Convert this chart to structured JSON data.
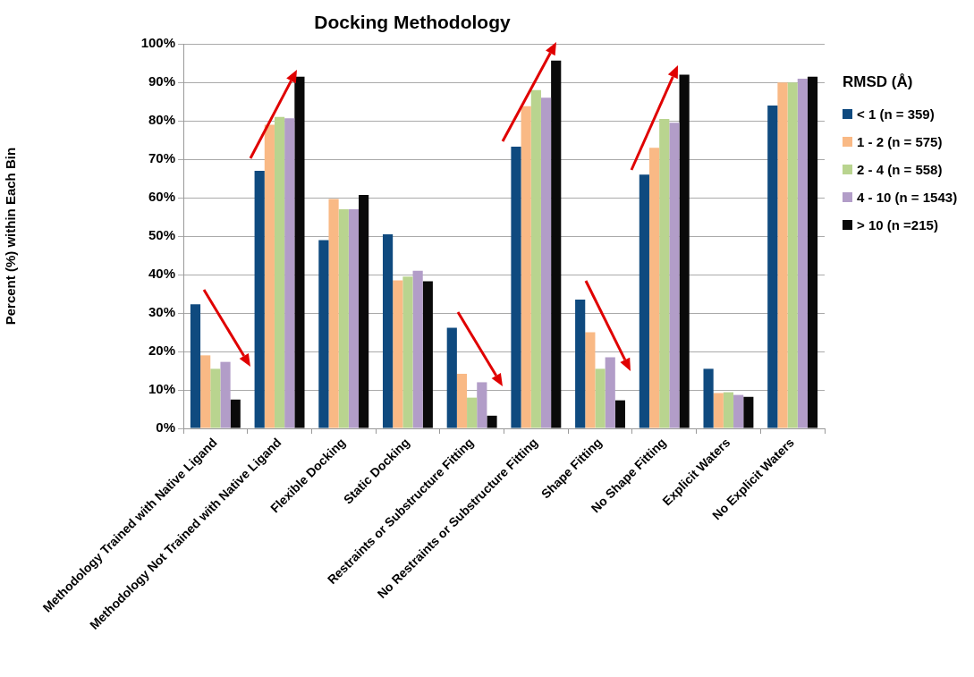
{
  "chart_data": {
    "type": "bar",
    "title": "Docking Methodology",
    "ylabel": "Percent (%) within Each Bin",
    "legend_title": "RMSD (Å)",
    "categories": [
      "Methodology Trained with Native Ligand",
      "Methodology Not Trained with Native Ligand",
      "Flexible Docking",
      "Static Docking",
      "Restraints or Substructure Fitting",
      "No Restraints or Substructure Fitting",
      "Shape Fitting",
      "No Shape Fitting",
      "Explicit Waters",
      "No Explicit Waters"
    ],
    "series": [
      {
        "name": "< 1 (n = 359)",
        "color": "#0f4a7f",
        "values": [
          32.3,
          67,
          49,
          50.5,
          26.2,
          73.3,
          33.5,
          66,
          15.5,
          84
        ]
      },
      {
        "name": "1 - 2 (n = 575)",
        "color": "#f9b985",
        "values": [
          19,
          79,
          59.7,
          38.5,
          14.2,
          83.8,
          25,
          73,
          9.2,
          90
        ]
      },
      {
        "name": "2 - 4 (n = 558)",
        "color": "#b9d48f",
        "values": [
          15.5,
          81,
          57,
          39.5,
          8,
          88,
          15.5,
          80.5,
          9.4,
          90
        ]
      },
      {
        "name": "4 - 10 (n = 1543)",
        "color": "#b29dc8",
        "values": [
          17.3,
          80.7,
          57,
          41,
          12,
          86,
          18.5,
          79.5,
          8.7,
          91
        ]
      },
      {
        "name": "> 10 (n =215)",
        "color": "#0a0a0a",
        "values": [
          7.5,
          91.5,
          60.7,
          38.3,
          3.3,
          95.7,
          7.3,
          92,
          8.2,
          91.5
        ]
      }
    ],
    "ylim": [
      0,
      100
    ],
    "yticks": [
      {
        "value": 0,
        "label": "0%"
      },
      {
        "value": 10,
        "label": "10%"
      },
      {
        "value": 20,
        "label": "20%"
      },
      {
        "value": 30,
        "label": "30%"
      },
      {
        "value": 40,
        "label": "40%"
      },
      {
        "value": 50,
        "label": "50%"
      },
      {
        "value": 60,
        "label": "60%"
      },
      {
        "value": 70,
        "label": "70%"
      },
      {
        "value": 80,
        "label": "80%"
      },
      {
        "value": 90,
        "label": "90%"
      },
      {
        "value": 100,
        "label": "100%"
      }
    ],
    "grid": "y",
    "legend": "right"
  }
}
